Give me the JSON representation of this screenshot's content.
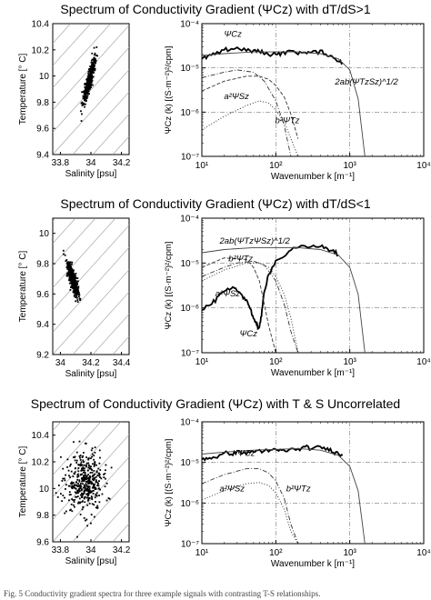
{
  "figure": {
    "caption_fragment": "Fig. 5  Conductivity gradient spectra for three example signals with contrasting T-S relationships."
  },
  "chart_data": [
    {
      "type": "scatter",
      "panel": "ts-1",
      "title": "Spectrum of Conductivity Gradient (ΨCz) with dT/dS>1",
      "xlabel": "Salinity [psu]",
      "ylabel": "Temperature [° C]",
      "xlim": [
        33.75,
        34.25
      ],
      "ylim": [
        9.4,
        10.4
      ],
      "xticks": [
        33.8,
        34,
        34.2
      ],
      "yticks": [
        9.4,
        9.6,
        9.8,
        10,
        10.2,
        10.4
      ],
      "grid": false,
      "cloud": {
        "center": [
          33.99,
          9.97
        ],
        "spread_along": 0.09,
        "spread_across": 0.015,
        "slope": 5.0,
        "n": 420
      }
    },
    {
      "type": "line",
      "panel": "spec-1",
      "xlabel": "Wavenumber k [m⁻¹]",
      "ylabel": "ΨCz (k) [(S·m⁻²)²/cpm]",
      "xscale": "log",
      "yscale": "log",
      "xlim": [
        10,
        10000
      ],
      "ylim": [
        1e-07,
        0.0001
      ],
      "xticks": [
        "10¹",
        "10²",
        "10³",
        "10⁴"
      ],
      "yticks": [
        "10⁻⁷",
        "10⁻⁶",
        "10⁻⁵",
        "10⁻⁴"
      ],
      "series": [
        {
          "name": "ΨCz",
          "style": "measured",
          "x": [
            10,
            12,
            15,
            20,
            25,
            30,
            40,
            50,
            60,
            70,
            80,
            100,
            120,
            150,
            200,
            250,
            300,
            400,
            500,
            600,
            700,
            800
          ],
          "y": [
            1.6e-05,
            1.8e-05,
            2e-05,
            2.4e-05,
            2.7e-05,
            2.8e-05,
            2.5e-05,
            2.4e-05,
            2.3e-05,
            2.2e-05,
            2.1e-05,
            2.2e-05,
            2.1e-05,
            2.3e-05,
            2.2e-05,
            2.4e-05,
            2.2e-05,
            2.3e-05,
            2e-05,
            1.8e-05,
            1.5e-05,
            1.3e-05
          ]
        },
        {
          "name": "a²ΨSz",
          "style": "dashdot",
          "x": [
            10,
            20,
            30,
            50,
            70,
            100,
            130,
            160
          ],
          "y": [
            6e-06,
            8e-06,
            9e-06,
            8e-06,
            5e-06,
            1.8e-06,
            5e-07,
            1e-07
          ]
        },
        {
          "name": "b²ΨTz",
          "style": "dotted",
          "x": [
            10,
            20,
            40,
            60,
            80,
            100,
            130,
            160,
            200
          ],
          "y": [
            4e-07,
            8e-07,
            1.4e-06,
            1.8e-06,
            1.6e-06,
            1.1e-06,
            6e-07,
            2.5e-07,
            1e-07
          ]
        },
        {
          "name": "2ab(ΨTzΨSz)^1/2",
          "style": "dashed",
          "x": [
            10,
            20,
            40,
            60,
            80,
            100,
            130,
            160,
            200
          ],
          "y": [
            3e-06,
            5e-06,
            6.5e-06,
            6.5e-06,
            5.5e-06,
            4e-06,
            2.2e-06,
            9e-07,
            2.5e-07
          ]
        },
        {
          "name": "",
          "style": "thin",
          "x": [
            10,
            20,
            50,
            100,
            200,
            400,
            700,
            1000,
            1300,
            1600
          ],
          "y": [
            1.9e-05,
            2.1e-05,
            2.3e-05,
            2.3e-05,
            2.3e-05,
            2.1e-05,
            1.6e-05,
            9e-06,
            2e-06,
            1e-07
          ]
        }
      ],
      "annotations": [
        "ΨCz",
        "a²ΨSz",
        "b²ΨTz",
        "2ab(ΨTzSz)^1/2"
      ]
    },
    {
      "type": "scatter",
      "panel": "ts-2",
      "title": "Spectrum of Conductivity Gradient (ΨCz) with dT/dS<1",
      "xlabel": "Salinity [psu]",
      "ylabel": "Temperature [° C]",
      "xlim": [
        33.95,
        34.45
      ],
      "ylim": [
        9.2,
        10.1
      ],
      "xticks": [
        34,
        34.2,
        34.4
      ],
      "yticks": [
        9.2,
        9.4,
        9.6,
        9.8,
        10
      ],
      "grid": false,
      "cloud": {
        "center": [
          34.08,
          9.7
        ],
        "spread_along": 0.055,
        "spread_across": 0.02,
        "slope": -4.0,
        "n": 420
      }
    },
    {
      "type": "line",
      "panel": "spec-2",
      "xlabel": "Wavenumber k [m⁻¹]",
      "ylabel": "ΨCz (k) [(S·m⁻²)²/cpm]",
      "xscale": "log",
      "yscale": "log",
      "xlim": [
        10,
        10000
      ],
      "ylim": [
        1e-07,
        0.0001
      ],
      "xticks": [
        "10¹",
        "10²",
        "10³",
        "10⁴"
      ],
      "yticks": [
        "10⁻⁷",
        "10⁻⁶",
        "10⁻⁵",
        "10⁻⁴"
      ],
      "series": [
        {
          "name": "ΨCz",
          "style": "measured",
          "x": [
            10,
            13,
            16,
            20,
            25,
            30,
            35,
            40,
            45,
            50,
            55,
            58,
            62,
            66,
            70,
            80,
            100,
            150,
            200,
            300,
            400,
            500,
            600,
            700
          ],
          "y": [
            9e-07,
            1.2e-06,
            1.6e-06,
            2.2e-06,
            2.6e-06,
            2.5e-06,
            2e-06,
            1.5e-06,
            1e-06,
            6e-07,
            4e-07,
            3.5e-07,
            5e-07,
            1e-06,
            2.5e-06,
            6e-06,
            1.1e-05,
            1.7e-05,
            2.2e-05,
            2.3e-05,
            2.5e-05,
            2.1e-05,
            1.8e-05,
            1.5e-05
          ]
        },
        {
          "name": "a²ΨSz",
          "style": "dashdot",
          "x": [
            10,
            20,
            30,
            50,
            70,
            100,
            130,
            160,
            200
          ],
          "y": [
            5e-06,
            8e-06,
            1e-05,
            1.1e-05,
            9e-06,
            4e-06,
            1.2e-06,
            3e-07,
            1e-07
          ]
        },
        {
          "name": "b²ΨTz",
          "style": "dotted",
          "x": [
            10,
            20,
            40,
            60,
            80,
            100,
            130,
            160,
            200
          ],
          "y": [
            4e-06,
            7e-06,
            1e-05,
            1e-05,
            8e-06,
            5e-06,
            2e-06,
            6e-07,
            1e-07
          ]
        },
        {
          "name": "2ab(ΨTzΨSz)^1/2",
          "style": "dashed",
          "x": [
            10,
            20,
            40,
            50,
            60,
            70,
            80,
            100
          ],
          "y": [
            8e-06,
            1.3e-05,
            1.2e-05,
            8e-06,
            4e-06,
            1.2e-06,
            4e-07,
            1e-07
          ]
        },
        {
          "name": "",
          "style": "thin",
          "x": [
            10,
            20,
            50,
            100,
            200,
            400,
            700,
            1000,
            1300,
            1600
          ],
          "y": [
            1.7e-05,
            2e-05,
            2.2e-05,
            2.2e-05,
            2.2e-05,
            2e-05,
            1.5e-05,
            8e-06,
            2e-06,
            1e-07
          ]
        }
      ],
      "annotations": [
        "2ab(ΨTzΨSz)^1/2",
        "b²ΨTz",
        "a²ΨSz",
        "ΨCz"
      ]
    },
    {
      "type": "scatter",
      "panel": "ts-3",
      "title": "Spectrum of Conductivity Gradient (ΨCz) with T & S Uncorrelated",
      "xlabel": "Salinity [psu]",
      "ylabel": "Temperature [° C]",
      "xlim": [
        33.75,
        34.25
      ],
      "ylim": [
        9.6,
        10.5
      ],
      "xticks": [
        33.8,
        34,
        34.2
      ],
      "yticks": [
        9.6,
        9.8,
        10,
        10.2,
        10.4
      ],
      "grid": false,
      "cloud": {
        "center": [
          33.96,
          10.05
        ],
        "spread_along": 0.06,
        "spread_across": 0.11,
        "slope": 0.0,
        "n": 420
      }
    },
    {
      "type": "line",
      "panel": "spec-3",
      "xlabel": "Wavenumber k [m⁻¹]",
      "ylabel": "ΨCz (k) [(S·m⁻²)²/cpm]",
      "xscale": "log",
      "yscale": "log",
      "xlim": [
        10,
        10000
      ],
      "ylim": [
        1e-07,
        0.0001
      ],
      "xticks": [
        "10¹",
        "10²",
        "10³",
        "10⁴"
      ],
      "yticks": [
        "10⁻⁷",
        "10⁻⁶",
        "10⁻⁵",
        "10⁻⁴"
      ],
      "series": [
        {
          "name": "ΨCz",
          "style": "measured",
          "x": [
            10,
            12,
            15,
            20,
            25,
            30,
            40,
            50,
            60,
            70,
            80,
            100,
            120,
            150,
            200,
            250,
            300,
            400,
            500,
            600,
            700,
            800
          ],
          "y": [
            1.2e-05,
            1.3e-05,
            1.4e-05,
            1.6e-05,
            1.7e-05,
            1.8e-05,
            1.7e-05,
            1.9e-05,
            2e-05,
            1.8e-05,
            1.9e-05,
            2.1e-05,
            1.9e-05,
            2e-05,
            2.1e-05,
            2.3e-05,
            2.2e-05,
            2.4e-05,
            2.1e-05,
            1.9e-05,
            1.7e-05,
            1.5e-05
          ]
        },
        {
          "name": "a²ΨSz",
          "style": "dashdot",
          "x": [
            10,
            20,
            40,
            60,
            80,
            100,
            130,
            160,
            200
          ],
          "y": [
            3e-06,
            5e-06,
            7e-06,
            7e-06,
            5.5e-06,
            3.5e-06,
            1.3e-06,
            3e-07,
            1e-07
          ]
        },
        {
          "name": "b²ΨTz",
          "style": "dotted",
          "x": [
            10,
            20,
            40,
            60,
            80,
            100,
            130,
            160,
            200
          ],
          "y": [
            1.2e-06,
            2e-06,
            3e-06,
            3.2e-06,
            2.7e-06,
            1.8e-06,
            7e-07,
            2e-07,
            1e-07
          ]
        },
        {
          "name": "",
          "style": "thin",
          "x": [
            10,
            20,
            50,
            100,
            200,
            400,
            700,
            1000,
            1300,
            1600
          ],
          "y": [
            1.6e-05,
            1.8e-05,
            2e-05,
            2.1e-05,
            2.2e-05,
            2e-05,
            1.5e-05,
            8e-06,
            2e-06,
            1e-07
          ]
        }
      ],
      "annotations": [
        "ΨCz",
        "a²ΨSz",
        "b²ΨTz"
      ]
    }
  ]
}
